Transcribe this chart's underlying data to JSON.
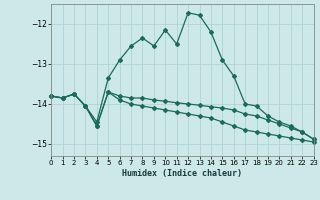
{
  "xlabel": "Humidex (Indice chaleur)",
  "background_color": "#cce8e8",
  "grid_color": "#aacfcf",
  "line_color": "#1a6b5a",
  "xlim": [
    0,
    23
  ],
  "ylim": [
    -15.3,
    -11.5
  ],
  "yticks": [
    -15,
    -14,
    -13,
    -12
  ],
  "xticks": [
    0,
    1,
    2,
    3,
    4,
    5,
    6,
    7,
    8,
    9,
    10,
    11,
    12,
    13,
    14,
    15,
    16,
    17,
    18,
    19,
    20,
    21,
    22,
    23
  ],
  "curve1_x": [
    0,
    1,
    2,
    3,
    4,
    5,
    6,
    7,
    8,
    9,
    10,
    11,
    12,
    13,
    14,
    15,
    16,
    17,
    18,
    19,
    20,
    21,
    22,
    23
  ],
  "curve1_y": [
    -13.8,
    -13.85,
    -13.75,
    -14.05,
    -14.45,
    -13.35,
    -12.9,
    -12.55,
    -12.35,
    -12.55,
    -12.15,
    -12.5,
    -11.72,
    -11.78,
    -12.2,
    -12.9,
    -13.3,
    -14.0,
    -14.05,
    -14.3,
    -14.45,
    -14.55,
    -14.7,
    -14.88
  ],
  "curve2_x": [
    0,
    1,
    2,
    3,
    4,
    5,
    6,
    7,
    8,
    9,
    10,
    11,
    12,
    13,
    14,
    15,
    16,
    17,
    18,
    19,
    20,
    21,
    22,
    23
  ],
  "curve2_y": [
    -13.8,
    -13.85,
    -13.75,
    -14.05,
    -14.55,
    -13.7,
    -13.8,
    -13.85,
    -13.85,
    -13.9,
    -13.93,
    -13.97,
    -14.0,
    -14.03,
    -14.07,
    -14.1,
    -14.15,
    -14.25,
    -14.3,
    -14.4,
    -14.5,
    -14.6,
    -14.7,
    -14.88
  ],
  "curve3_x": [
    0,
    1,
    2,
    3,
    4,
    5,
    6,
    7,
    8,
    9,
    10,
    11,
    12,
    13,
    14,
    15,
    16,
    17,
    18,
    19,
    20,
    21,
    22,
    23
  ],
  "curve3_y": [
    -13.8,
    -13.85,
    -13.75,
    -14.05,
    -14.55,
    -13.7,
    -13.9,
    -14.0,
    -14.05,
    -14.1,
    -14.15,
    -14.2,
    -14.25,
    -14.3,
    -14.35,
    -14.45,
    -14.55,
    -14.65,
    -14.7,
    -14.75,
    -14.8,
    -14.85,
    -14.9,
    -14.95
  ]
}
